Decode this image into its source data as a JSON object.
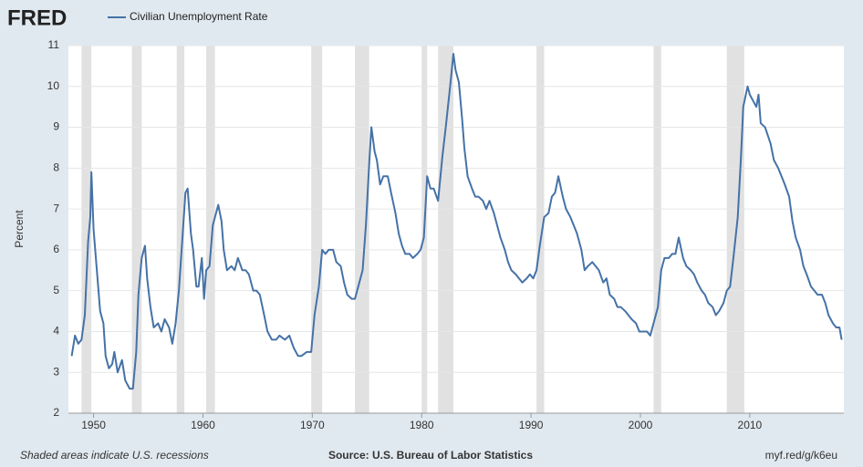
{
  "logo": "FRED",
  "chart_data": {
    "type": "line",
    "ylabel": "Percent",
    "x": [
      1948.0,
      1948.3,
      1948.6,
      1948.9,
      1949.2,
      1949.5,
      1949.7,
      1949.8,
      1950.0,
      1950.3,
      1950.6,
      1950.9,
      1951.1,
      1951.4,
      1951.7,
      1951.9,
      1952.2,
      1952.6,
      1952.9,
      1953.3,
      1953.6,
      1953.9,
      1954.1,
      1954.4,
      1954.7,
      1954.9,
      1955.2,
      1955.5,
      1955.9,
      1956.2,
      1956.5,
      1956.9,
      1957.2,
      1957.5,
      1957.8,
      1958.1,
      1958.4,
      1958.6,
      1958.9,
      1959.1,
      1959.4,
      1959.6,
      1959.9,
      1960.1,
      1960.3,
      1960.6,
      1960.9,
      1961.2,
      1961.4,
      1961.7,
      1961.9,
      1962.2,
      1962.6,
      1962.9,
      1963.2,
      1963.6,
      1963.9,
      1964.2,
      1964.6,
      1964.9,
      1965.2,
      1965.6,
      1965.9,
      1966.3,
      1966.7,
      1967.0,
      1967.5,
      1967.9,
      1968.3,
      1968.7,
      1969.0,
      1969.5,
      1969.9,
      1970.2,
      1970.6,
      1970.9,
      1971.2,
      1971.5,
      1971.9,
      1972.2,
      1972.6,
      1972.9,
      1973.2,
      1973.6,
      1973.9,
      1974.2,
      1974.6,
      1974.9,
      1975.2,
      1975.4,
      1975.7,
      1975.9,
      1976.2,
      1976.5,
      1976.9,
      1977.2,
      1977.6,
      1977.9,
      1978.2,
      1978.5,
      1978.9,
      1979.2,
      1979.6,
      1979.9,
      1980.2,
      1980.5,
      1980.8,
      1981.1,
      1981.5,
      1981.9,
      1982.2,
      1982.6,
      1982.9,
      1983.1,
      1983.4,
      1983.7,
      1983.9,
      1984.2,
      1984.6,
      1984.9,
      1985.2,
      1985.6,
      1985.9,
      1986.2,
      1986.6,
      1986.9,
      1987.2,
      1987.6,
      1987.9,
      1988.2,
      1988.6,
      1988.9,
      1989.2,
      1989.6,
      1989.9,
      1990.2,
      1990.5,
      1990.8,
      1991.2,
      1991.6,
      1991.9,
      1992.2,
      1992.5,
      1992.9,
      1993.2,
      1993.6,
      1993.9,
      1994.2,
      1994.6,
      1994.9,
      1995.2,
      1995.6,
      1995.9,
      1996.2,
      1996.6,
      1996.9,
      1997.2,
      1997.6,
      1997.9,
      1998.2,
      1998.6,
      1998.9,
      1999.2,
      1999.6,
      1999.9,
      2000.2,
      2000.6,
      2000.9,
      2001.2,
      2001.6,
      2001.9,
      2002.2,
      2002.6,
      2002.9,
      2003.2,
      2003.5,
      2003.9,
      2004.2,
      2004.6,
      2004.9,
      2005.2,
      2005.6,
      2005.9,
      2006.2,
      2006.6,
      2006.9,
      2007.2,
      2007.6,
      2007.9,
      2008.2,
      2008.5,
      2008.9,
      2009.2,
      2009.4,
      2009.8,
      2010.0,
      2010.4,
      2010.6,
      2010.8,
      2011.0,
      2011.4,
      2011.9,
      2012.2,
      2012.6,
      2012.9,
      2013.2,
      2013.6,
      2013.9,
      2014.2,
      2014.6,
      2014.9,
      2015.2,
      2015.6,
      2015.9,
      2016.2,
      2016.6,
      2016.9,
      2017.2,
      2017.6,
      2017.9,
      2018.2,
      2018.4
    ],
    "series": [
      {
        "name": "Civilian Unemployment Rate",
        "color": "#4572a7",
        "values": [
          3.4,
          3.9,
          3.7,
          3.8,
          4.4,
          6.2,
          6.8,
          7.9,
          6.5,
          5.5,
          4.5,
          4.2,
          3.4,
          3.1,
          3.2,
          3.5,
          3.0,
          3.3,
          2.8,
          2.6,
          2.6,
          3.5,
          4.9,
          5.8,
          6.1,
          5.3,
          4.6,
          4.1,
          4.2,
          4.0,
          4.3,
          4.1,
          3.7,
          4.2,
          5.0,
          6.2,
          7.4,
          7.5,
          6.4,
          6.0,
          5.1,
          5.1,
          5.8,
          4.8,
          5.5,
          5.6,
          6.6,
          6.9,
          7.1,
          6.7,
          6.0,
          5.5,
          5.6,
          5.5,
          5.8,
          5.5,
          5.5,
          5.4,
          5.0,
          5.0,
          4.9,
          4.4,
          4.0,
          3.8,
          3.8,
          3.9,
          3.8,
          3.9,
          3.6,
          3.4,
          3.4,
          3.5,
          3.5,
          4.4,
          5.1,
          6.0,
          5.9,
          6.0,
          6.0,
          5.7,
          5.6,
          5.2,
          4.9,
          4.8,
          4.8,
          5.1,
          5.5,
          6.6,
          8.1,
          9.0,
          8.4,
          8.2,
          7.6,
          7.8,
          7.8,
          7.4,
          6.9,
          6.4,
          6.1,
          5.9,
          5.9,
          5.8,
          5.9,
          6.0,
          6.3,
          7.8,
          7.5,
          7.5,
          7.2,
          8.3,
          9.0,
          10.0,
          10.8,
          10.4,
          10.1,
          9.2,
          8.5,
          7.8,
          7.5,
          7.3,
          7.3,
          7.2,
          7.0,
          7.2,
          6.9,
          6.6,
          6.3,
          6.0,
          5.7,
          5.5,
          5.4,
          5.3,
          5.2,
          5.3,
          5.4,
          5.3,
          5.5,
          6.1,
          6.8,
          6.9,
          7.3,
          7.4,
          7.8,
          7.3,
          7.0,
          6.8,
          6.6,
          6.4,
          6.0,
          5.5,
          5.6,
          5.7,
          5.6,
          5.5,
          5.2,
          5.3,
          4.9,
          4.8,
          4.6,
          4.6,
          4.5,
          4.4,
          4.3,
          4.2,
          4.0,
          4.0,
          4.0,
          3.9,
          4.2,
          4.6,
          5.5,
          5.8,
          5.8,
          5.9,
          5.9,
          6.3,
          5.8,
          5.6,
          5.5,
          5.4,
          5.2,
          5.0,
          4.9,
          4.7,
          4.6,
          4.4,
          4.5,
          4.7,
          5.0,
          5.1,
          5.8,
          6.8,
          8.3,
          9.5,
          10.0,
          9.8,
          9.6,
          9.5,
          9.8,
          9.1,
          9.0,
          8.6,
          8.2,
          8.0,
          7.8,
          7.6,
          7.3,
          6.7,
          6.3,
          6.0,
          5.6,
          5.4,
          5.1,
          5.0,
          4.9,
          4.9,
          4.7,
          4.4,
          4.2,
          4.1,
          4.1,
          3.8
        ]
      }
    ],
    "recessions": [
      [
        1948.9,
        1949.8
      ],
      [
        1953.5,
        1954.4
      ],
      [
        1957.6,
        1958.3
      ],
      [
        1960.3,
        1961.1
      ],
      [
        1969.9,
        1970.9
      ],
      [
        1973.9,
        1975.2
      ],
      [
        1980.0,
        1980.5
      ],
      [
        1981.5,
        1982.9
      ],
      [
        1990.5,
        1991.2
      ],
      [
        2001.2,
        2001.9
      ],
      [
        2007.9,
        2009.5
      ]
    ],
    "recession_color": "#e1e1e1",
    "xlim": [
      1947.7,
      2018.6
    ],
    "xticks": [
      1950,
      1960,
      1970,
      1980,
      1990,
      2000,
      2010
    ],
    "ylim": [
      2,
      11
    ],
    "yticks": [
      2,
      3,
      4,
      5,
      6,
      7,
      8,
      9,
      10,
      11
    ],
    "grid": true,
    "note": "Shaded areas indicate U.S. recessions",
    "source": "Source: U.S. Bureau of Labor Statistics",
    "link": "myf.red/g/k6eu"
  }
}
